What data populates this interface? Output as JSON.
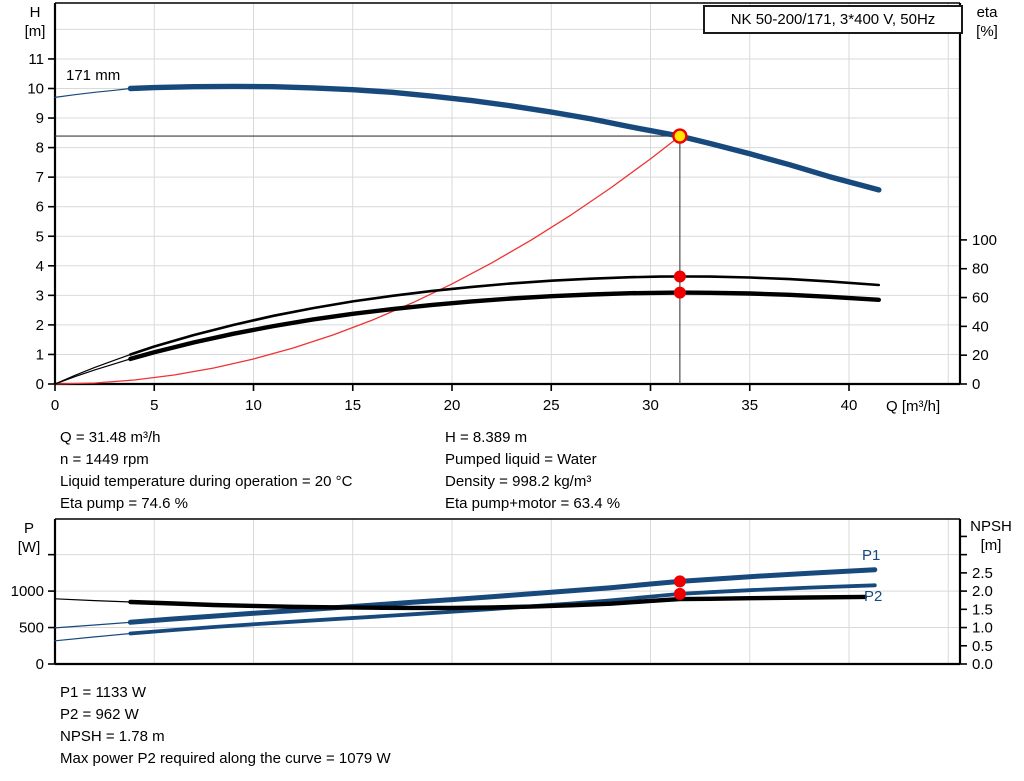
{
  "title_box": "NK 50-200/171, 3*400 V, 50Hz",
  "labels": {
    "h_axis": "H",
    "h_unit": "[m]",
    "eta_axis": "eta",
    "eta_unit": "[%]",
    "q_axis": "Q [m³/h]",
    "p_axis": "P",
    "p_unit": "[W]",
    "npsh_axis": "NPSH",
    "npsh_unit": "[m]",
    "impeller": "171 mm",
    "p1": "P1",
    "p2": "P2"
  },
  "info_top_left": [
    "Q = 31.48 m³/h",
    "n = 1449 rpm",
    "Liquid temperature during operation = 20 °C",
    "Eta pump = 74.6 %"
  ],
  "info_top_right": [
    "H = 8.389 m",
    "Pumped liquid = Water",
    "Density = 998.2 kg/m³",
    "Eta pump+motor = 63.4 %"
  ],
  "info_bottom": [
    "P1 = 1133 W",
    "P2 = 962 W",
    "NPSH = 1.78 m",
    "Max power P2 required along the curve = 1079 W"
  ],
  "colors": {
    "blue": "#17497d",
    "black": "#000000",
    "red_curve": "#ee3333",
    "red_dot": "#ee0000",
    "duty_fill": "#ffe500",
    "grid": "#d9d9d9",
    "crosshair": "#3d3d3d",
    "frame": "#000000"
  },
  "chart_data": [
    {
      "id": "head-efficiency-chart",
      "type": "line",
      "title": "NK 50-200/171, 3*400 V, 50Hz",
      "x_axis": {
        "label": "Q [m³/h]",
        "min": 0,
        "max": 45.6,
        "ticks": [
          0,
          5,
          10,
          15,
          20,
          25,
          30,
          35,
          40
        ],
        "grid": [
          5,
          10,
          15,
          20,
          25,
          30,
          35,
          40,
          45
        ]
      },
      "y_left": {
        "label": "H [m]",
        "min": 0,
        "max": 12.9,
        "ticks": [
          0,
          1,
          2,
          3,
          4,
          5,
          6,
          7,
          8,
          9,
          10,
          11
        ],
        "grid": [
          1,
          2,
          3,
          4,
          5,
          6,
          7,
          8,
          9,
          10,
          11,
          12
        ]
      },
      "y_right": {
        "label": "eta [%]",
        "min": 0,
        "ticks": [
          0,
          20,
          40,
          60,
          80,
          100
        ]
      },
      "series": [
        {
          "name": "system-curve",
          "axis": "H",
          "color": "red_curve",
          "width": 1.3,
          "thin_split": null,
          "points": [
            [
              0,
              0
            ],
            [
              2,
              0.034
            ],
            [
              4,
              0.135
            ],
            [
              6,
              0.305
            ],
            [
              8,
              0.542
            ],
            [
              10,
              0.847
            ],
            [
              12,
              1.219
            ],
            [
              14,
              1.659
            ],
            [
              16,
              2.167
            ],
            [
              18,
              2.743
            ],
            [
              20,
              3.386
            ],
            [
              22,
              4.097
            ],
            [
              24,
              4.876
            ],
            [
              26,
              5.723
            ],
            [
              28,
              6.637
            ],
            [
              30,
              7.619
            ],
            [
              31.48,
              8.389
            ]
          ]
        },
        {
          "name": "eta-pump-curve",
          "axis": "eta",
          "color": "black",
          "width": 2.6,
          "thin_split": 3.8,
          "points": [
            [
              0,
              0
            ],
            [
              1,
              6
            ],
            [
              2,
              11.5
            ],
            [
              3,
              16.5
            ],
            [
              3.8,
              20.5
            ],
            [
              5,
              26
            ],
            [
              7,
              34
            ],
            [
              9,
              41
            ],
            [
              11,
              47.3
            ],
            [
              13,
              52.7
            ],
            [
              15,
              57.3
            ],
            [
              17,
              61.2
            ],
            [
              19,
              64.6
            ],
            [
              21,
              67.4
            ],
            [
              23,
              69.8
            ],
            [
              25,
              71.7
            ],
            [
              27,
              73.1
            ],
            [
              29,
              74.1
            ],
            [
              30.5,
              74.5
            ],
            [
              31.48,
              74.6
            ],
            [
              33,
              74.5
            ],
            [
              35,
              73.9
            ],
            [
              37,
              72.8
            ],
            [
              39,
              71.2
            ],
            [
              41.5,
              68.7
            ]
          ]
        },
        {
          "name": "eta-pump-motor-curve",
          "axis": "eta",
          "color": "black",
          "width": 4.4,
          "thin_split": 3.8,
          "points": [
            [
              0,
              0
            ],
            [
              1,
              5.1
            ],
            [
              2,
              9.8
            ],
            [
              3,
              14
            ],
            [
              3.8,
              17.4
            ],
            [
              5,
              22.1
            ],
            [
              7,
              28.9
            ],
            [
              9,
              34.9
            ],
            [
              11,
              40.2
            ],
            [
              13,
              44.8
            ],
            [
              15,
              48.7
            ],
            [
              17,
              52
            ],
            [
              19,
              54.9
            ],
            [
              21,
              57.3
            ],
            [
              23,
              59.3
            ],
            [
              25,
              60.9
            ],
            [
              27,
              62.1
            ],
            [
              29,
              63
            ],
            [
              30.5,
              63.3
            ],
            [
              31.48,
              63.4
            ],
            [
              33,
              63.3
            ],
            [
              35,
              62.8
            ],
            [
              37,
              61.9
            ],
            [
              39,
              60.5
            ],
            [
              41.5,
              58.4
            ]
          ]
        },
        {
          "name": "head-curve",
          "axis": "H",
          "color": "blue",
          "width": 5.4,
          "thin_split": 3.8,
          "points": [
            [
              0,
              9.7
            ],
            [
              1,
              9.79
            ],
            [
              2,
              9.87
            ],
            [
              3,
              9.94
            ],
            [
              3.8,
              10.0
            ],
            [
              5,
              10.03
            ],
            [
              7,
              10.06
            ],
            [
              9,
              10.07
            ],
            [
              11,
              10.06
            ],
            [
              13,
              10.02
            ],
            [
              15,
              9.96
            ],
            [
              17,
              9.87
            ],
            [
              19,
              9.74
            ],
            [
              21,
              9.59
            ],
            [
              23,
              9.41
            ],
            [
              25,
              9.2
            ],
            [
              27,
              8.97
            ],
            [
              29,
              8.7
            ],
            [
              31.48,
              8.389
            ],
            [
              33,
              8.14
            ],
            [
              35,
              7.79
            ],
            [
              37,
              7.42
            ],
            [
              39,
              7.02
            ],
            [
              41.5,
              6.57
            ]
          ]
        }
      ],
      "duty_point": {
        "q": 31.48,
        "h": 8.389
      },
      "dots": [
        {
          "q": 31.48,
          "axis": "eta",
          "v": 74.6
        },
        {
          "q": 31.48,
          "axis": "eta",
          "v": 63.4
        }
      ],
      "annotations": {
        "impeller": "171 mm"
      }
    },
    {
      "id": "power-npsh-chart",
      "type": "line",
      "x_axis": {
        "min": 0,
        "max": 45.6,
        "ticks": [],
        "grid": [
          5,
          10,
          15,
          20,
          25,
          30,
          35,
          40,
          45
        ]
      },
      "y_left": {
        "label": "P [W]",
        "min": 0,
        "ticks": [
          {
            "v": 0,
            "label": "0"
          },
          {
            "v": 500,
            "label": "500"
          },
          {
            "v": 1000,
            "label": "1000"
          },
          {
            "v": 1500,
            "label": ""
          }
        ],
        "grid": [
          500,
          1000,
          1500
        ]
      },
      "y_right": {
        "label": "NPSH [m]",
        "min": 0,
        "ticks": [
          {
            "v": 0,
            "label": "0.0"
          },
          {
            "v": 0.5,
            "label": "0.5"
          },
          {
            "v": 1,
            "label": "1.0"
          },
          {
            "v": 1.5,
            "label": "1.5"
          },
          {
            "v": 2,
            "label": "2.0"
          },
          {
            "v": 2.5,
            "label": "2.5"
          },
          {
            "v": 3,
            "label": ""
          },
          {
            "v": 3.5,
            "label": ""
          }
        ]
      },
      "series": [
        {
          "name": "p2-curve",
          "axis": "P",
          "color": "blue",
          "width": 3.8,
          "thin_split": 3.8,
          "points": [
            [
              0,
              318
            ],
            [
              2,
              372
            ],
            [
              3.8,
              418
            ],
            [
              6,
              466
            ],
            [
              8,
              508
            ],
            [
              10,
              545
            ],
            [
              12,
              580
            ],
            [
              14,
              614
            ],
            [
              16,
              648
            ],
            [
              18,
              682
            ],
            [
              20,
              717
            ],
            [
              22,
              753
            ],
            [
              24,
              791
            ],
            [
              26,
              830
            ],
            [
              28,
              872
            ],
            [
              30,
              925
            ],
            [
              31.48,
              962
            ],
            [
              33,
              985
            ],
            [
              35,
              1013
            ],
            [
              38,
              1048
            ],
            [
              41.3,
              1079
            ]
          ]
        },
        {
          "name": "p1-curve",
          "axis": "P",
          "color": "blue",
          "width": 5,
          "thin_split": 3.8,
          "points": [
            [
              0,
              495
            ],
            [
              2,
              535
            ],
            [
              3.8,
              572
            ],
            [
              6,
              618
            ],
            [
              8,
              657
            ],
            [
              10,
              695
            ],
            [
              12,
              732
            ],
            [
              14,
              770
            ],
            [
              16,
              808
            ],
            [
              18,
              846
            ],
            [
              20,
              884
            ],
            [
              22,
              923
            ],
            [
              24,
              963
            ],
            [
              26,
              1004
            ],
            [
              28,
              1047
            ],
            [
              30,
              1098
            ],
            [
              31.48,
              1133
            ],
            [
              33,
              1161
            ],
            [
              35,
              1198
            ],
            [
              38,
              1246
            ],
            [
              41.3,
              1293
            ]
          ]
        },
        {
          "name": "npsh-curve",
          "axis": "NPSH",
          "color": "black",
          "width": 4.4,
          "thin_split": 3.8,
          "points": [
            [
              0,
              1.79
            ],
            [
              2,
              1.74
            ],
            [
              3.8,
              1.7
            ],
            [
              6,
              1.66
            ],
            [
              8,
              1.62
            ],
            [
              10,
              1.595
            ],
            [
              12,
              1.57
            ],
            [
              14,
              1.555
            ],
            [
              16,
              1.545
            ],
            [
              18,
              1.54
            ],
            [
              20,
              1.54
            ],
            [
              22,
              1.55
            ],
            [
              24,
              1.575
            ],
            [
              26,
              1.61
            ],
            [
              28,
              1.655
            ],
            [
              30,
              1.73
            ],
            [
              31.48,
              1.78
            ],
            [
              33,
              1.79
            ],
            [
              35,
              1.805
            ],
            [
              38,
              1.825
            ],
            [
              40.8,
              1.84
            ]
          ]
        }
      ],
      "dots": [
        {
          "q": 31.48,
          "axis": "P",
          "v": 1133
        },
        {
          "q": 31.48,
          "axis": "P",
          "v": 962
        }
      ]
    }
  ]
}
